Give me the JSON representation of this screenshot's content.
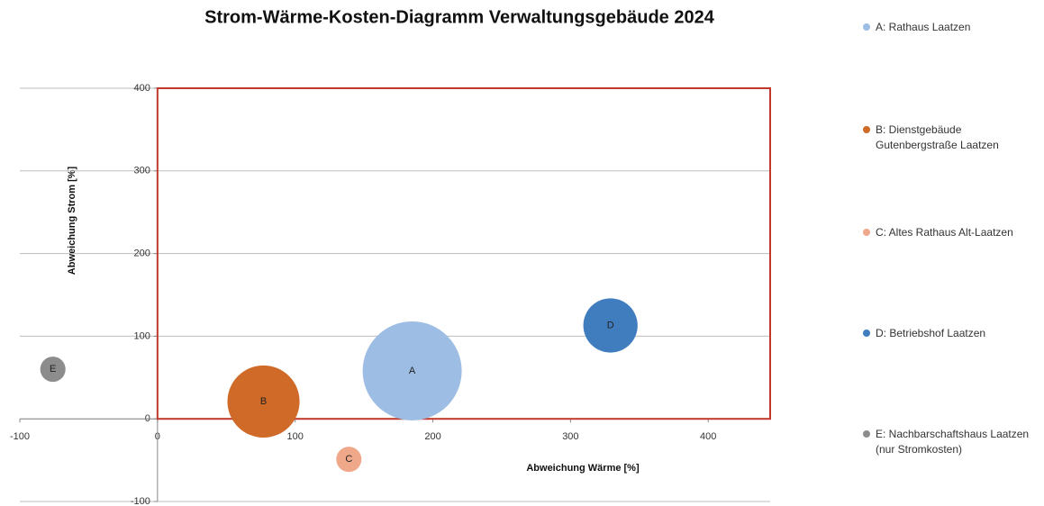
{
  "chart_data": {
    "type": "bubble",
    "title": "Strom-Wärme-Kosten-Diagramm Verwaltungsgebäude 2024",
    "x_label": "Abweichung Wärme [%]",
    "y_label": "Abweichung Strom [%]",
    "xlim": [
      -100,
      445
    ],
    "xticks": [
      -100,
      0,
      100,
      200,
      300,
      400
    ],
    "ylim": [
      -100,
      400
    ],
    "yticks": [
      -100,
      0,
      100,
      200,
      300,
      400
    ],
    "grid": true,
    "highlight_region": {
      "x": [
        0,
        445
      ],
      "y": [
        0,
        400
      ],
      "color": "#c0392b"
    },
    "legend": "right",
    "series": [
      {
        "name": "A: Rathaus Laatzen",
        "label": "A",
        "color": "#9dbde4",
        "x": [
          185
        ],
        "values": [
          58
        ],
        "sizes": [
          100
        ]
      },
      {
        "name": "B: Dienstgebäude Gutenbergstraße Laatzen",
        "label": "B",
        "color": "#d06a28",
        "x": [
          77
        ],
        "values": [
          21
        ],
        "sizes": [
          53
        ]
      },
      {
        "name": "C: Altes Rathaus Alt-Laatzen",
        "label": "C",
        "color": "#f0a88a",
        "x": [
          139
        ],
        "values": [
          -49
        ],
        "sizes": [
          6.5
        ]
      },
      {
        "name": "D: Betriebshof Laatzen",
        "label": "D",
        "color": "#3f7dbf",
        "x": [
          329
        ],
        "values": [
          113
        ],
        "sizes": [
          30
        ]
      },
      {
        "name": "E: Nachbarschaftshaus Laatzen (nur Stromkosten)",
        "label": "E",
        "color": "#8c8c8c",
        "x": [
          -76
        ],
        "values": [
          60
        ],
        "sizes": [
          6.5
        ]
      }
    ]
  }
}
